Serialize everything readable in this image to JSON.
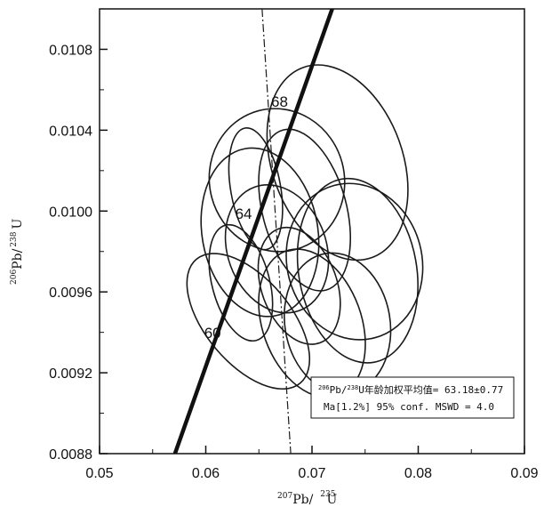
{
  "chart_data": {
    "type": "scatter",
    "xlabel": {
      "sup1": "207",
      "base1": "Pb/",
      "sup2": "235",
      "base2": "U"
    },
    "ylabel": {
      "sup1": "206",
      "base1": "Pb/",
      "sup2": "238",
      "base2": "U"
    },
    "xlim": [
      0.05,
      0.09
    ],
    "ylim": [
      0.0088,
      0.011
    ],
    "x_ticks": [
      {
        "value": 0.05,
        "label": "0.05"
      },
      {
        "value": 0.06,
        "label": "0.06"
      },
      {
        "value": 0.07,
        "label": "0.07"
      },
      {
        "value": 0.08,
        "label": "0.08"
      },
      {
        "value": 0.09,
        "label": "0.09"
      }
    ],
    "y_ticks": [
      {
        "value": 0.0088,
        "label": "0.0088"
      },
      {
        "value": 0.0092,
        "label": "0.0092"
      },
      {
        "value": 0.0096,
        "label": "0.0096"
      },
      {
        "value": 0.01,
        "label": "0.0100"
      },
      {
        "value": 0.0104,
        "label": "0.0104"
      },
      {
        "value": 0.0108,
        "label": "0.0108"
      }
    ],
    "concordia": {
      "start": [
        0.0571,
        0.0088
      ],
      "end": [
        0.0719,
        0.011
      ],
      "age_marks": [
        {
          "label": "60",
          "x": 0.0611,
          "y": 0.009385
        },
        {
          "label": "64",
          "x": 0.0641,
          "y": 0.009975
        },
        {
          "label": "68",
          "x": 0.0674,
          "y": 0.010525
        }
      ]
    },
    "reference_line": {
      "points": [
        [
          0.0653,
          0.011
        ],
        [
          0.068,
          0.0088
        ]
      ]
    },
    "ellipses": [
      {
        "cx": 0.0667,
        "cy": 0.010153,
        "rx": 0.00635,
        "ry": 0.000355,
        "angle": -15
      },
      {
        "cx": 0.0724,
        "cy": 0.01024,
        "rx": 0.00615,
        "ry": 0.0005,
        "angle": -20
      },
      {
        "cx": 0.0647,
        "cy": 0.01011,
        "rx": 0.00235,
        "ry": 0.000305,
        "angle": -10
      },
      {
        "cx": 0.0693,
        "cy": 0.010005,
        "rx": 0.00395,
        "ry": 0.00041,
        "angle": -15
      },
      {
        "cx": 0.0651,
        "cy": 0.009895,
        "rx": 0.00545,
        "ry": 0.00042,
        "angle": -10
      },
      {
        "cx": 0.0667,
        "cy": 0.009813,
        "rx": 0.00465,
        "ry": 0.000325,
        "angle": -20
      },
      {
        "cx": 0.074,
        "cy": 0.00975,
        "rx": 0.00635,
        "ry": 0.00039,
        "angle": -15
      },
      {
        "cx": 0.0743,
        "cy": 0.009705,
        "rx": 0.00555,
        "ry": 0.00046,
        "angle": -10
      },
      {
        "cx": 0.0688,
        "cy": 0.00963,
        "rx": 0.00355,
        "ry": 0.0003,
        "angle": -20
      },
      {
        "cx": 0.0633,
        "cy": 0.009645,
        "rx": 0.0027,
        "ry": 0.000295,
        "angle": -15
      },
      {
        "cx": 0.064,
        "cy": 0.009455,
        "rx": 0.004,
        "ry": 0.0004,
        "angle": -40
      },
      {
        "cx": 0.0724,
        "cy": 0.009445,
        "rx": 0.00495,
        "ry": 0.00035,
        "angle": -10
      },
      {
        "cx": 0.07,
        "cy": 0.009445,
        "rx": 0.00465,
        "ry": 0.00038,
        "angle": -20
      }
    ],
    "annotation": {
      "line1": {
        "sup1": "206",
        "base1": "Pb/",
        "sup2": "238",
        "base2": "U年龄加权平均值= 63.18±0.77"
      },
      "line2": "Ma[1.2%] 95% conf.  MSWD = 4.0"
    },
    "grid": false,
    "legend": "none"
  }
}
